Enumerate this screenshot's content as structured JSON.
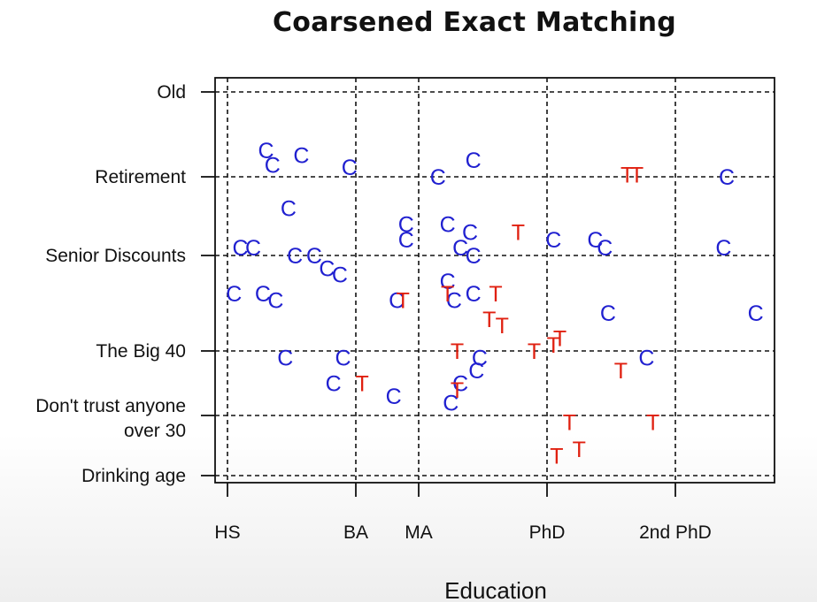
{
  "colors": {
    "C": "#2020d0",
    "T": "#e02010",
    "axis": "#111111"
  },
  "chart_data": {
    "type": "scatter",
    "title": "Coarsened Exact Matching",
    "xlabel": "Education",
    "ylabel": "",
    "grid": true,
    "grid_style": "dashed",
    "x_ticks": [
      {
        "label": "HS",
        "value": 12
      },
      {
        "label": "BA",
        "value": 16
      },
      {
        "label": "MA",
        "value": 18
      },
      {
        "label": "PhD",
        "value": 22
      },
      {
        "label": "2nd PhD",
        "value": 26
      }
    ],
    "y_ticks": [
      {
        "lines": [
          "Old"
        ],
        "value": 100
      },
      {
        "lines": [
          "Retirement"
        ],
        "value": 65
      },
      {
        "lines": [
          "Senior Discounts"
        ],
        "value": 55
      },
      {
        "lines": [
          "The Big 40"
        ],
        "value": 40
      },
      {
        "lines": [
          "Don't trust anyone",
          "over 30"
        ],
        "value": 30
      },
      {
        "lines": [
          "Drinking age"
        ],
        "value": 21
      }
    ],
    "series": [
      {
        "name": "C",
        "marker": "C",
        "points": [
          [
            13.2,
            76
          ],
          [
            13.4,
            70
          ],
          [
            14.3,
            74
          ],
          [
            15.8,
            69
          ],
          [
            13.9,
            61
          ],
          [
            12.4,
            56
          ],
          [
            12.8,
            56
          ],
          [
            14.1,
            55
          ],
          [
            14.7,
            55
          ],
          [
            15.1,
            53
          ],
          [
            15.5,
            52
          ],
          [
            12.2,
            49
          ],
          [
            13.1,
            49
          ],
          [
            13.5,
            48
          ],
          [
            13.8,
            39
          ],
          [
            15.6,
            39
          ],
          [
            15.3,
            35
          ],
          [
            17.3,
            48
          ],
          [
            17.6,
            59
          ],
          [
            17.6,
            57
          ],
          [
            17.2,
            33
          ],
          [
            18.6,
            65
          ],
          [
            18.9,
            59
          ],
          [
            19.7,
            72
          ],
          [
            19.6,
            58
          ],
          [
            19.3,
            56
          ],
          [
            18.9,
            51
          ],
          [
            19.1,
            48
          ],
          [
            19.7,
            49
          ],
          [
            19.9,
            39
          ],
          [
            19.8,
            37
          ],
          [
            19.3,
            35
          ],
          [
            19.0,
            32
          ],
          [
            19.7,
            55
          ],
          [
            22.2,
            57
          ],
          [
            23.5,
            57
          ],
          [
            23.8,
            56
          ],
          [
            23.9,
            46
          ],
          [
            25.1,
            39
          ],
          [
            27.6,
            65
          ],
          [
            27.5,
            56
          ],
          [
            28.5,
            46
          ]
        ]
      },
      {
        "name": "T",
        "marker": "T",
        "points": [
          [
            16.2,
            35
          ],
          [
            17.5,
            48
          ],
          [
            18.9,
            49
          ],
          [
            19.2,
            40
          ],
          [
            19.2,
            34
          ],
          [
            20.2,
            45
          ],
          [
            20.6,
            44
          ],
          [
            20.4,
            49
          ],
          [
            21.1,
            58
          ],
          [
            21.6,
            40
          ],
          [
            22.2,
            41
          ],
          [
            22.4,
            42
          ],
          [
            22.7,
            29
          ],
          [
            23.0,
            25
          ],
          [
            22.3,
            24
          ],
          [
            24.5,
            66
          ],
          [
            24.8,
            66
          ],
          [
            24.3,
            37
          ],
          [
            25.3,
            29
          ]
        ]
      }
    ]
  }
}
